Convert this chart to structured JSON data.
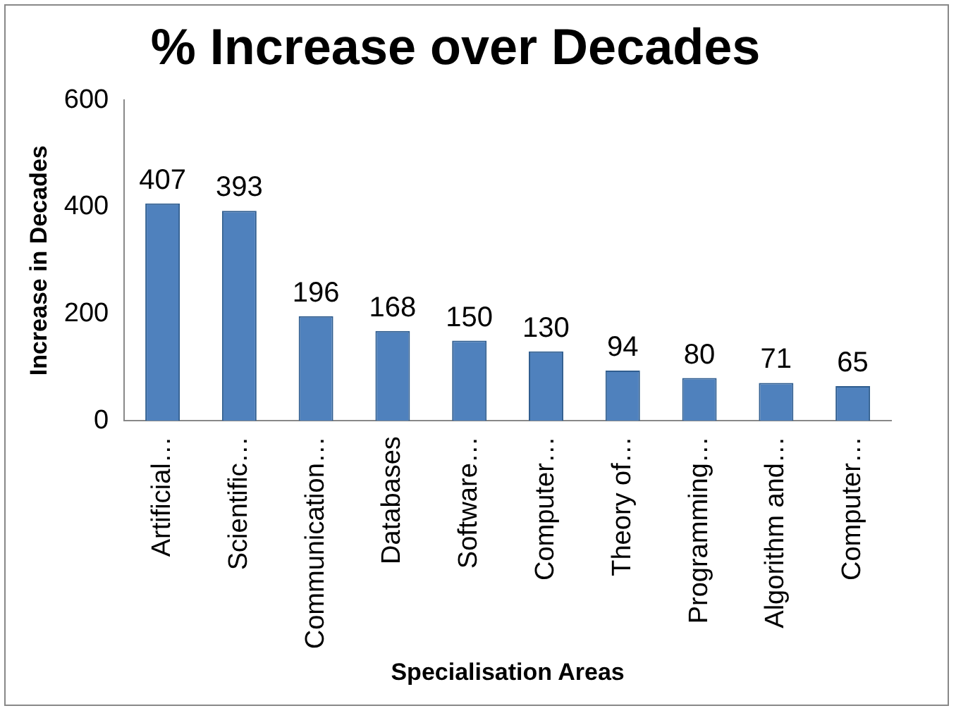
{
  "chart_data": {
    "type": "bar",
    "title": "% Increase over Decades",
    "xlabel": "Specialisation Areas",
    "ylabel": "Increase in Decades",
    "categories": [
      "Artificial…",
      "Scientific…",
      "Communication…",
      "Databases",
      "Software…",
      "Computer…",
      "Theory of…",
      "Programming…",
      "Algorithm and…",
      "Computer…"
    ],
    "values": [
      407,
      393,
      196,
      168,
      150,
      130,
      94,
      80,
      71,
      65
    ],
    "color": "#4f81bd",
    "ylim": [
      0,
      600
    ],
    "yticks": [
      0,
      200,
      400,
      600
    ],
    "grid": false,
    "legend": false,
    "data_labels": true
  }
}
